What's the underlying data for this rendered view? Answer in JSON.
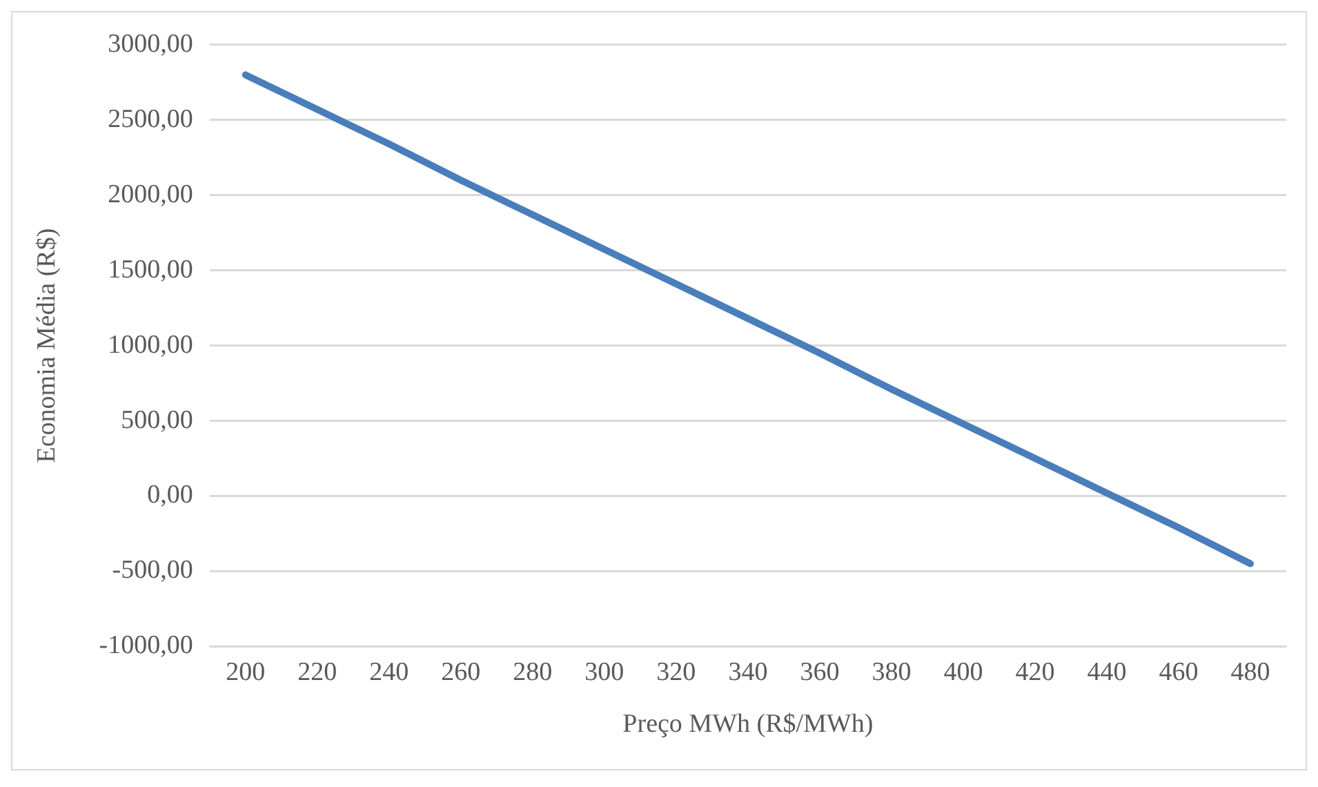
{
  "chart_data": {
    "type": "line",
    "xlabel": "Preço MWh (R$/MWh)",
    "ylabel": "Economia Média (R$)",
    "categories": [
      "200",
      "220",
      "240",
      "260",
      "280",
      "300",
      "320",
      "340",
      "360",
      "380",
      "400",
      "420",
      "440",
      "460",
      "480"
    ],
    "series": [
      {
        "color": "#4a7ebb",
        "values": [
          2800,
          2570,
          2340,
          2100,
          1870,
          1640,
          1410,
          1180,
          950,
          710,
          480,
          250,
          20,
          -210,
          -450
        ]
      }
    ],
    "ylim": [
      -1000,
      3000
    ],
    "yticks": [
      {
        "value": -1000,
        "label": "-1000,00"
      },
      {
        "value": -500,
        "label": "-500,00"
      },
      {
        "value": 0,
        "label": "0,00"
      },
      {
        "value": 500,
        "label": "500,00"
      },
      {
        "value": 1000,
        "label": "1000,00"
      },
      {
        "value": 1500,
        "label": "1500,00"
      },
      {
        "value": 2000,
        "label": "2000,00"
      },
      {
        "value": 2500,
        "label": "2500,00"
      },
      {
        "value": 3000,
        "label": "3000,00"
      }
    ],
    "grid": "y",
    "legend": false,
    "marker": "none",
    "line_style": "solid"
  }
}
